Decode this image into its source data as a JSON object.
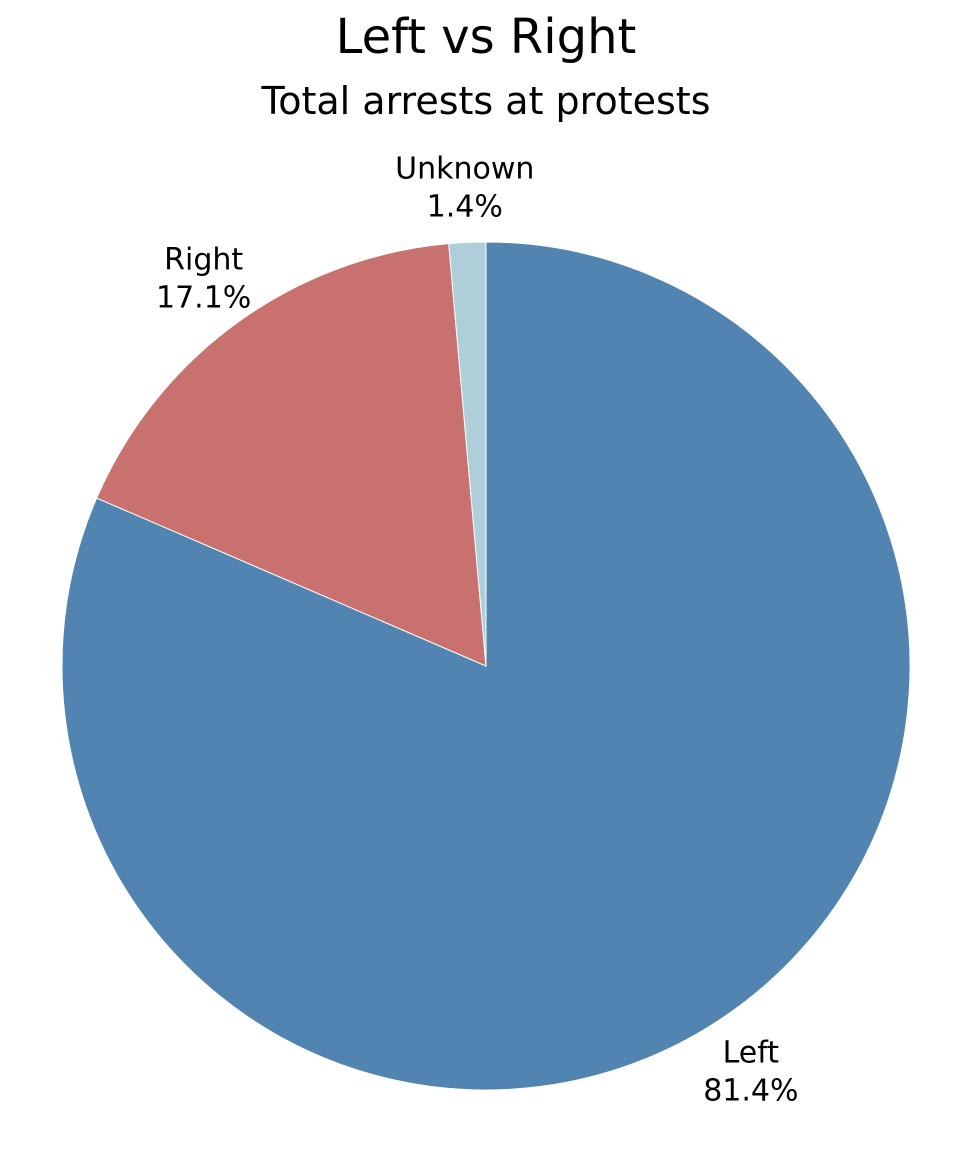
{
  "chart_data": {
    "type": "pie",
    "title": "Left vs Right",
    "subtitle": "Total arrests at protests",
    "slices": [
      {
        "label": "Left",
        "value": 81.4,
        "value_label": "81.4%",
        "color": "#5284b2"
      },
      {
        "label": "Right",
        "value": 17.1,
        "value_label": "17.1%",
        "color": "#c8716e"
      },
      {
        "label": "Unknown",
        "value": 1.4,
        "value_label": "1.4%",
        "color": "#aecfda"
      }
    ],
    "start_angle": "12 o'clock",
    "direction": "clockwise",
    "legend": "none"
  }
}
